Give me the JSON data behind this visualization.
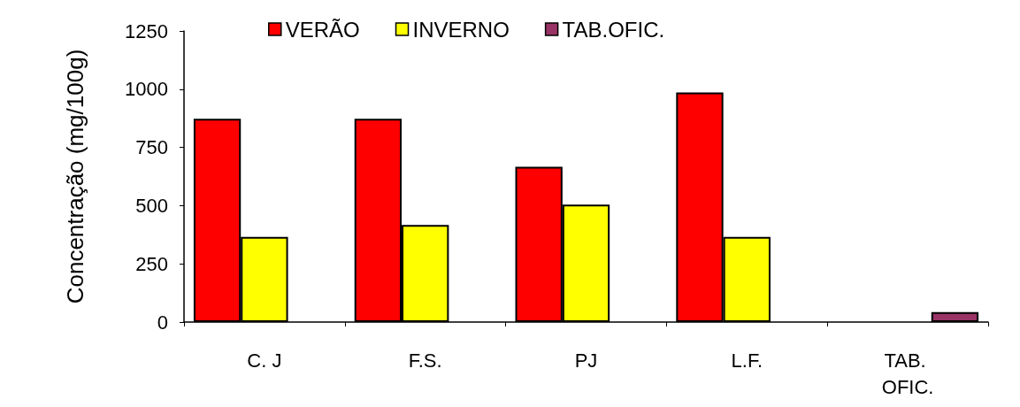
{
  "chart_data": {
    "type": "bar",
    "ylabel": "Concentração (mg/100g)",
    "categories": [
      "C. J",
      "F.S.",
      "PJ",
      "L.F.",
      "TAB. OFIC."
    ],
    "series": [
      {
        "name": "VERÃO",
        "color": "#ff0000",
        "values": [
          873,
          873,
          667,
          986,
          null
        ]
      },
      {
        "name": "INVERNO",
        "color": "#ffff00",
        "values": [
          366,
          417,
          504,
          366,
          null
        ]
      },
      {
        "name": "TAB.OFIC.",
        "color": "#993366",
        "values": [
          null,
          null,
          null,
          null,
          43
        ]
      }
    ],
    "ylim": [
      0,
      1250
    ],
    "yticks": [
      0,
      250,
      500,
      750,
      1000,
      1250
    ],
    "grid": false,
    "legend": "top"
  }
}
